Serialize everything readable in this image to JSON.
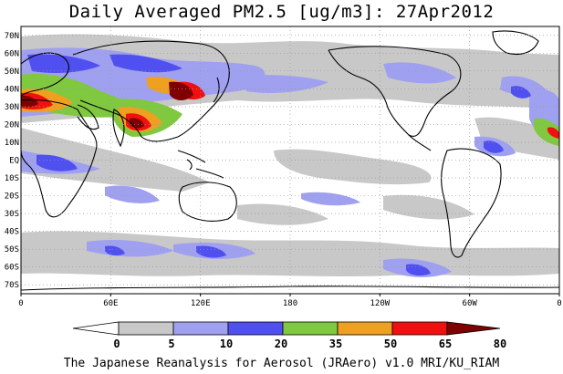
{
  "title": "Daily Averaged PM2.5 [ug/m3]: 27Apr2012",
  "footer": "The Japanese Reanalysis for Aerosol (JRAero) v1.0 MRI/KU_RIAM",
  "map": {
    "lat_labels": [
      "70N",
      "60N",
      "50N",
      "40N",
      "30N",
      "20N",
      "10N",
      "EQ",
      "10S",
      "20S",
      "30S",
      "40S",
      "50S",
      "60S",
      "70S"
    ],
    "lat_values": [
      70,
      60,
      50,
      40,
      30,
      20,
      10,
      0,
      -10,
      -20,
      -30,
      -40,
      -50,
      -60,
      -70
    ],
    "lon_labels": [
      "0",
      "60E",
      "120E",
      "180",
      "120W",
      "60W",
      "0"
    ],
    "lon_values": [
      0,
      60,
      120,
      180,
      240,
      300,
      360
    ],
    "lat_range": [
      -75,
      75
    ],
    "lon_range": [
      0,
      360
    ],
    "grid": "dotted"
  },
  "colorbar": {
    "labels": [
      "0",
      "5",
      "10",
      "20",
      "35",
      "50",
      "65",
      "80"
    ],
    "colors": [
      "#ffffff",
      "#c8c8c8",
      "#a0a0f0",
      "#5050f0",
      "#80c840",
      "#f0a020",
      "#f01010",
      "#800000"
    ]
  }
}
